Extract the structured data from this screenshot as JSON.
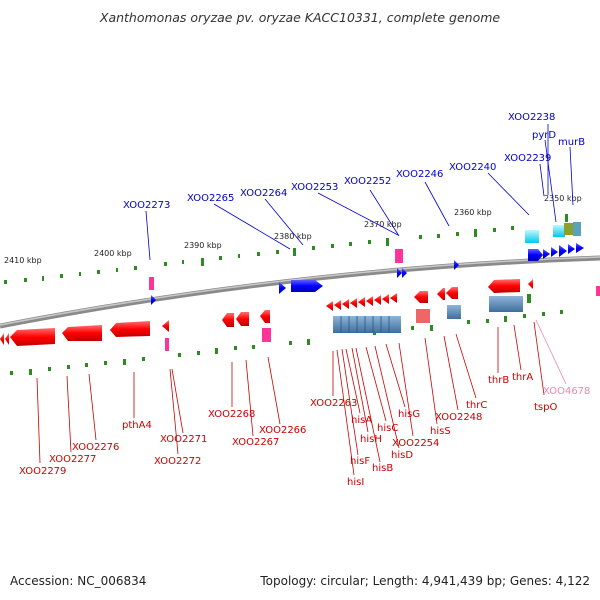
{
  "title": "Xanthomonas oryzae pv. oryzae KACC10331, complete genome",
  "footer": {
    "accession": "Accession: NC_006834",
    "summary": "Topology: circular; Length: 4,941,439 bp; Genes: 4,122"
  },
  "colors": {
    "forward_gene": "#0000ff",
    "reverse_gene": "#ff0000",
    "rna_gene": "#ff3399",
    "pseudo_gene": "#ff99cc",
    "cds_box": "#4682b4",
    "tick": "#2e8b22",
    "backbone": "#888888",
    "forward_label": "#0000cc",
    "reverse_label": "#cc0000",
    "pseudo_label": "#ee88aa"
  },
  "kbp_labels": [
    "2410 kbp",
    "2400 kbp",
    "2390 kbp",
    "2380 kbp",
    "2370 kbp",
    "2360 kbp",
    "2350 kbp"
  ],
  "forward_labels": [
    "XOO2238",
    "pyrD",
    "murB",
    "XOO2239",
    "XOO2240",
    "XOO2246",
    "XOO2252",
    "XOO2253",
    "XOO2264",
    "XOO2265",
    "XOO2273"
  ],
  "reverse_labels": [
    "XOO2279",
    "XOO2277",
    "XOO2276",
    "pthA4",
    "XOO2271",
    "XOO2272",
    "XOO2268",
    "XOO2267",
    "XOO2266",
    "XOO2263",
    "hisI",
    "hisF",
    "hisA",
    "hisH",
    "hisB",
    "hisC",
    "hisD",
    "hisG",
    "XOO2254",
    "hisS",
    "XOO2248",
    "thrC",
    "thrB",
    "thrA",
    "tspO"
  ],
  "pseudo_labels": [
    "XOO4678"
  ]
}
